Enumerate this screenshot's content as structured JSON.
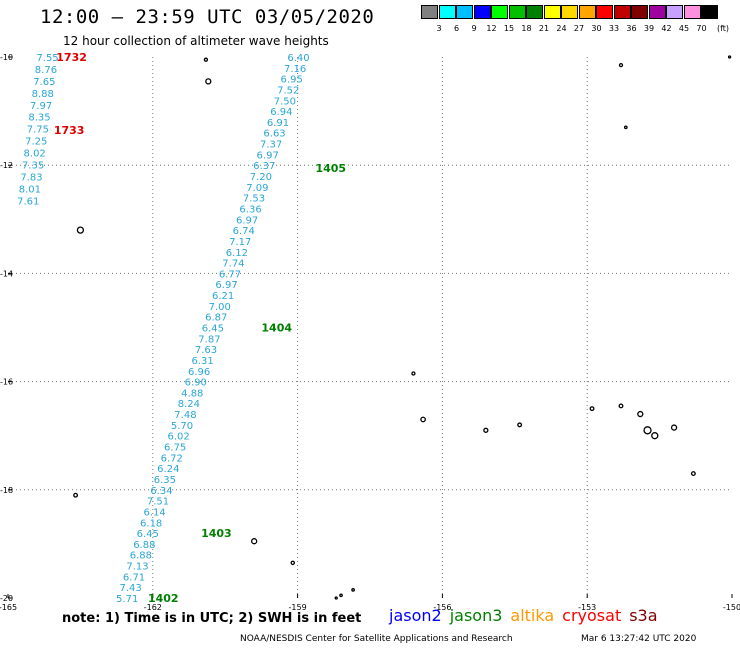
{
  "header": {
    "title": "12:00 – 23:59 UTC 03/05/2020",
    "subtitle": "12 hour collection of altimeter wave heights"
  },
  "color_legend": {
    "unit": "(ft)",
    "bins": [
      {
        "label": "3",
        "color": "#808080"
      },
      {
        "label": "6",
        "color": "#00ffff"
      },
      {
        "label": "9",
        "color": "#00bfff"
      },
      {
        "label": "12",
        "color": "#0000ff"
      },
      {
        "label": "15",
        "color": "#00ff00"
      },
      {
        "label": "18",
        "color": "#00c000"
      },
      {
        "label": "21",
        "color": "#008000"
      },
      {
        "label": "24",
        "color": "#ffff00"
      },
      {
        "label": "27",
        "color": "#ffd700"
      },
      {
        "label": "30",
        "color": "#ffa500"
      },
      {
        "label": "33",
        "color": "#ff0000"
      },
      {
        "label": "36",
        "color": "#c00000"
      },
      {
        "label": "39",
        "color": "#800000"
      },
      {
        "label": "42",
        "color": "#a000a0"
      },
      {
        "label": "45",
        "color": "#c8a0ff"
      },
      {
        "label": "70",
        "color": "#ff90e0"
      },
      {
        "label": "",
        "color": "#000000"
      }
    ]
  },
  "map": {
    "lon_ticks": [
      "-165",
      "-162",
      "-159",
      "-156",
      "-153",
      "-150"
    ],
    "lat_ticks": [
      "-10",
      "-12",
      "-14",
      "-16",
      "-18",
      "-20"
    ],
    "value_color": "#2aa6d6",
    "track_a": {
      "values": [
        "7.55",
        "8.76",
        "7.65",
        "8.88",
        "7.97",
        "8.35",
        "7.75",
        "7.25",
        "8.02",
        "7.35",
        "7.83",
        "8.01",
        "7.61"
      ],
      "time_labels": [
        {
          "text": "1732",
          "color": "#e00000",
          "lat": -10.0,
          "lon": -164.0
        },
        {
          "text": "1733",
          "color": "#e00000",
          "lat": -11.35,
          "lon": -164.05
        }
      ]
    },
    "track_b": {
      "values": [
        "6.40",
        "7.16",
        "6.95",
        "7.52",
        "7.50",
        "6.94",
        "6.91",
        "6.63",
        "7.37",
        "6.97",
        "6.37",
        "7.20",
        "7.09",
        "7.53",
        "6.36",
        "6.97",
        "6.74",
        "7.17",
        "6.12",
        "7.74",
        "6.77",
        "6.97",
        "6.21",
        "7.00",
        "6.87",
        "6.45",
        "7.87",
        "7.63",
        "6.31",
        "6.96",
        "6.90",
        "4.88",
        "8.24",
        "7.48",
        "5.70",
        "6.02",
        "6.75",
        "6.72",
        "6.24",
        "6.35",
        "6.34",
        "7.51",
        "6.14",
        "6.18",
        "6.45",
        "6.88",
        "6.88",
        "7.13",
        "6.71",
        "7.43",
        "5.71"
      ],
      "time_labels": [
        {
          "text": "1405",
          "color": "#008000",
          "lat": -12.05,
          "lon": -158.63
        },
        {
          "text": "1404",
          "color": "#008000",
          "lat": -15.0,
          "lon": -159.75
        },
        {
          "text": "1403",
          "color": "#008000",
          "lat": -18.8,
          "lon": -161.0
        },
        {
          "text": "1402",
          "color": "#008000",
          "lat": -20.0,
          "lon": -162.1
        }
      ]
    }
  },
  "footer": {
    "note": "note: 1) Time is in UTC; 2) SWH is in feet",
    "satellites": [
      {
        "name": "jason2",
        "color": "#0000ff"
      },
      {
        "name": "jason3",
        "color": "#008000"
      },
      {
        "name": "altika",
        "color": "#ff9900"
      },
      {
        "name": "cryosat",
        "color": "#ff0000"
      },
      {
        "name": "s3a",
        "color": "#800000"
      }
    ],
    "credit": "NOAA/NESDIS Center for Satellite Applications and Research",
    "timestamp": "Mar  6 13:27:42 UTC 2020"
  }
}
